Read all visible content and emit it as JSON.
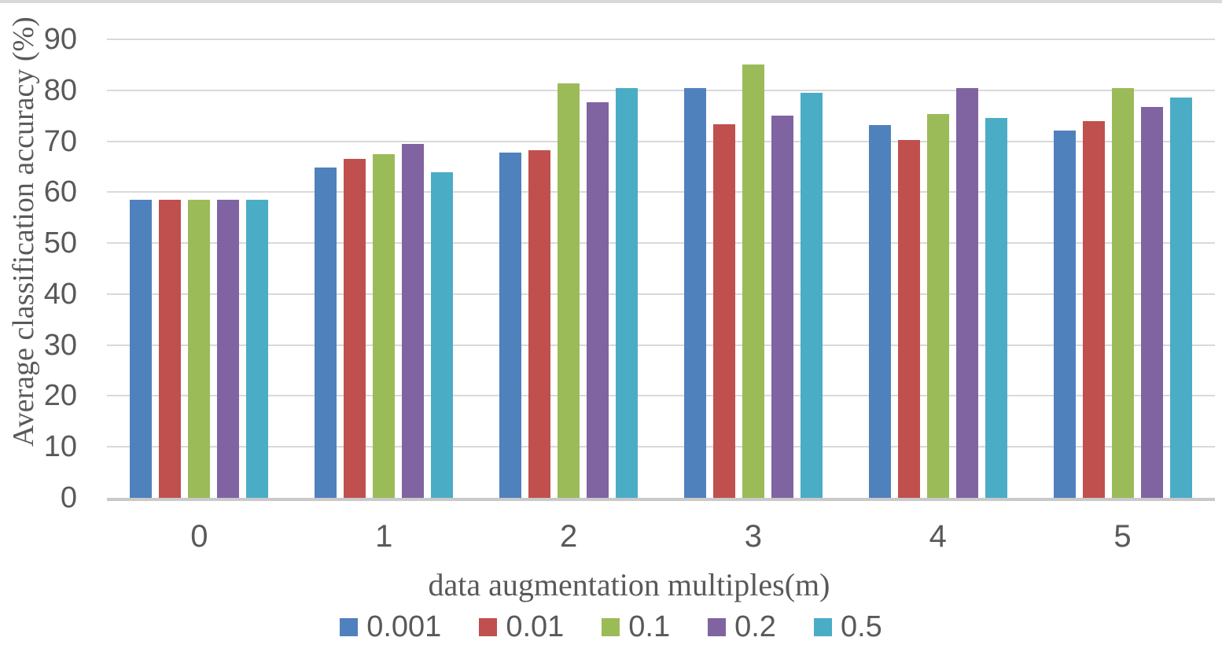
{
  "palette": {
    "text_color": "#595959",
    "grid_color": "#d9d9d9",
    "axis_line_color": "#c9c9c9",
    "border_color": "#d9d9d9"
  },
  "chart_data": {
    "type": "bar",
    "title": "",
    "xlabel": "data augmentation multiples(m)",
    "ylabel": "Average classification accuracy (%)",
    "ylim": [
      0,
      90
    ],
    "yticks": [
      0,
      10,
      20,
      30,
      40,
      50,
      60,
      70,
      80,
      90
    ],
    "categories": [
      "0",
      "1",
      "2",
      "3",
      "4",
      "5"
    ],
    "series": [
      {
        "name": "0.001",
        "color": "#4F81BD",
        "values": [
          58.5,
          64.8,
          67.7,
          80.4,
          73.2,
          72.1
        ]
      },
      {
        "name": "0.01",
        "color": "#C0504D",
        "values": [
          58.5,
          66.6,
          68.3,
          73.3,
          70.3,
          74.0
        ]
      },
      {
        "name": "0.1",
        "color": "#9BBB59",
        "values": [
          58.5,
          67.5,
          81.4,
          85.0,
          75.4,
          80.5
        ]
      },
      {
        "name": "0.2",
        "color": "#8064A2",
        "values": [
          58.5,
          69.4,
          77.7,
          75.1,
          80.4,
          76.7
        ]
      },
      {
        "name": "0.5",
        "color": "#4BACC6",
        "values": [
          58.5,
          63.9,
          80.4,
          79.5,
          74.5,
          78.6
        ]
      }
    ],
    "legend_position": "bottom",
    "grid": true
  }
}
